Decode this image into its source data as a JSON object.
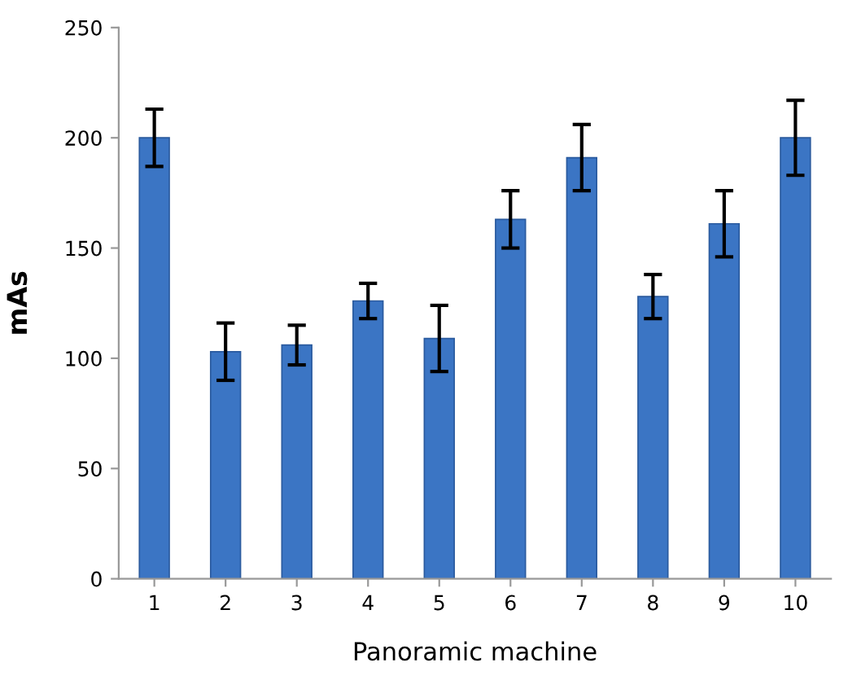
{
  "chart_data": {
    "type": "bar",
    "xlabel": "Panoramic machine",
    "ylabel": "mAs",
    "categories": [
      "1",
      "2",
      "3",
      "4",
      "5",
      "6",
      "7",
      "8",
      "9",
      "10"
    ],
    "values": [
      200,
      103,
      106,
      126,
      109,
      163,
      191,
      128,
      161,
      200
    ],
    "errors": [
      13,
      13,
      9,
      8,
      15,
      13,
      15,
      10,
      15,
      17
    ],
    "color": "#3b75c4",
    "ylim": [
      0,
      250
    ],
    "yticks": [
      0,
      50,
      100,
      150,
      200,
      250
    ],
    "grid": false
  }
}
